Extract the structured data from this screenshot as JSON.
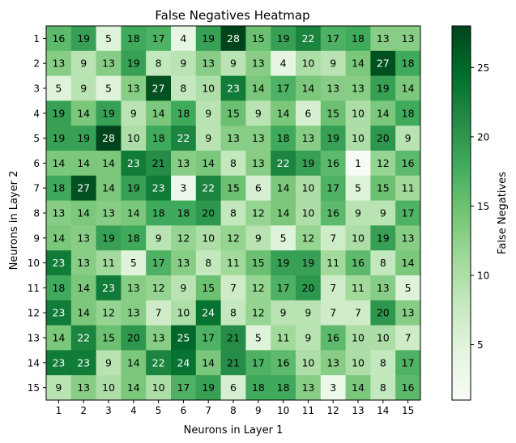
{
  "chart_data": {
    "type": "heatmap",
    "title": "False Negatives Heatmap",
    "xlabel": "Neurons in Layer 1",
    "ylabel": "Neurons in Layer 2",
    "x_categories": [
      "1",
      "2",
      "3",
      "4",
      "5",
      "6",
      "7",
      "8",
      "9",
      "10",
      "11",
      "12",
      "13",
      "14",
      "15"
    ],
    "y_categories": [
      "1",
      "2",
      "3",
      "4",
      "5",
      "6",
      "7",
      "8",
      "9",
      "10",
      "11",
      "12",
      "13",
      "14",
      "15"
    ],
    "values": [
      [
        16,
        19,
        5,
        18,
        17,
        4,
        19,
        28,
        15,
        19,
        22,
        17,
        18,
        13,
        13
      ],
      [
        13,
        9,
        13,
        19,
        8,
        9,
        13,
        9,
        13,
        4,
        10,
        9,
        14,
        27,
        18
      ],
      [
        5,
        9,
        5,
        13,
        27,
        8,
        10,
        23,
        14,
        17,
        14,
        13,
        13,
        19,
        14
      ],
      [
        19,
        14,
        19,
        9,
        14,
        18,
        9,
        15,
        9,
        14,
        6,
        15,
        10,
        14,
        18
      ],
      [
        19,
        19,
        28,
        10,
        18,
        22,
        9,
        13,
        13,
        18,
        13,
        19,
        10,
        20,
        9
      ],
      [
        14,
        14,
        14,
        23,
        21,
        13,
        14,
        8,
        13,
        22,
        19,
        16,
        1,
        12,
        16
      ],
      [
        18,
        27,
        14,
        19,
        23,
        3,
        22,
        15,
        6,
        14,
        10,
        17,
        5,
        15,
        11
      ],
      [
        13,
        14,
        13,
        14,
        18,
        18,
        20,
        8,
        12,
        14,
        10,
        16,
        9,
        9,
        17
      ],
      [
        14,
        13,
        19,
        18,
        9,
        12,
        10,
        12,
        9,
        5,
        12,
        7,
        10,
        19,
        13
      ],
      [
        23,
        13,
        11,
        5,
        17,
        13,
        8,
        11,
        15,
        19,
        19,
        11,
        16,
        8,
        14
      ],
      [
        18,
        14,
        23,
        13,
        12,
        9,
        15,
        7,
        12,
        17,
        20,
        7,
        11,
        13,
        5
      ],
      [
        23,
        14,
        12,
        13,
        7,
        10,
        24,
        8,
        12,
        9,
        9,
        7,
        7,
        20,
        13
      ],
      [
        14,
        22,
        15,
        20,
        13,
        25,
        17,
        21,
        5,
        11,
        9,
        16,
        10,
        10,
        7
      ],
      [
        23,
        23,
        9,
        14,
        22,
        24,
        14,
        21,
        17,
        16,
        10,
        13,
        10,
        8,
        17
      ],
      [
        9,
        13,
        10,
        14,
        10,
        17,
        19,
        6,
        18,
        18,
        13,
        3,
        14,
        8,
        16
      ]
    ],
    "colormap": "Greens",
    "vmin": 1,
    "vmax": 28,
    "colorbar": {
      "label": "False Negatives",
      "ticks": [
        5,
        10,
        15,
        20,
        25
      ]
    },
    "grid": false
  }
}
